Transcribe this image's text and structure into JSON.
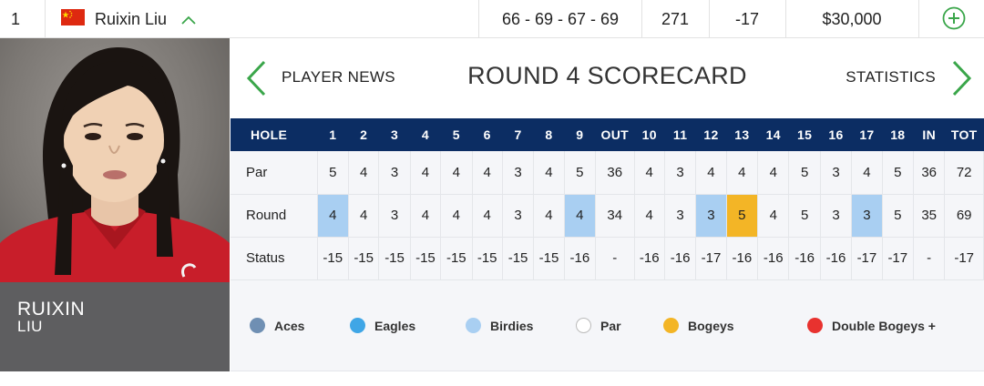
{
  "leaderboard_row": {
    "position": "1",
    "player_name": "Ruixin Liu",
    "rounds": "66 - 69 - 67 - 69",
    "total": "271",
    "to_par": "-17",
    "earnings": "$30,000"
  },
  "player": {
    "first_name": "RUIXIN",
    "last_name": "LIU"
  },
  "scorecard_nav": {
    "left_label": "PLAYER NEWS",
    "title": "ROUND 4 SCORECARD",
    "right_label": "STATISTICS"
  },
  "scorecard": {
    "headers": [
      "HOLE",
      "1",
      "2",
      "3",
      "4",
      "5",
      "6",
      "7",
      "8",
      "9",
      "OUT",
      "10",
      "11",
      "12",
      "13",
      "14",
      "15",
      "16",
      "17",
      "18",
      "IN",
      "TOT"
    ],
    "rows": [
      {
        "label": "Par",
        "cells": [
          "5",
          "4",
          "3",
          "4",
          "4",
          "4",
          "3",
          "4",
          "5",
          "36",
          "4",
          "3",
          "4",
          "4",
          "4",
          "5",
          "3",
          "4",
          "5",
          "36",
          "72"
        ]
      },
      {
        "label": "Round",
        "cells": [
          "4",
          "4",
          "3",
          "4",
          "4",
          "4",
          "3",
          "4",
          "4",
          "34",
          "4",
          "3",
          "3",
          "5",
          "4",
          "5",
          "3",
          "3",
          "5",
          "35",
          "69"
        ],
        "types": [
          "birdie",
          "",
          "",
          "",
          "",
          "",
          "",
          "",
          "birdie",
          "",
          "",
          "",
          "birdie",
          "bogey",
          "",
          "",
          "",
          "birdie",
          "",
          "",
          ""
        ]
      },
      {
        "label": "Status",
        "cells": [
          "-15",
          "-15",
          "-15",
          "-15",
          "-15",
          "-15",
          "-15",
          "-15",
          "-16",
          "-",
          "-16",
          "-16",
          "-17",
          "-16",
          "-16",
          "-16",
          "-16",
          "-17",
          "-17",
          "-",
          "-17"
        ]
      }
    ]
  },
  "legend": [
    {
      "label": "Aces",
      "color": "#6f8fb3"
    },
    {
      "label": "Eagles",
      "color": "#3fa6e6"
    },
    {
      "label": "Birdies",
      "color": "#a9cff2"
    },
    {
      "label": "Par",
      "color": "#ffffff"
    },
    {
      "label": "Bogeys",
      "color": "#f3b526"
    },
    {
      "label": "Double Bogeys +",
      "color": "#e8322f"
    }
  ],
  "colors": {
    "header_navy": "#0c2d63",
    "accent_green": "#3aa64a",
    "birdie": "#a9cff2",
    "bogey": "#f3b526"
  },
  "icons": {
    "flag": "china-flag-icon",
    "expand": "chevron-up-icon",
    "add": "plus-circle-icon",
    "prev": "chevron-left-icon",
    "next": "chevron-right-icon"
  }
}
